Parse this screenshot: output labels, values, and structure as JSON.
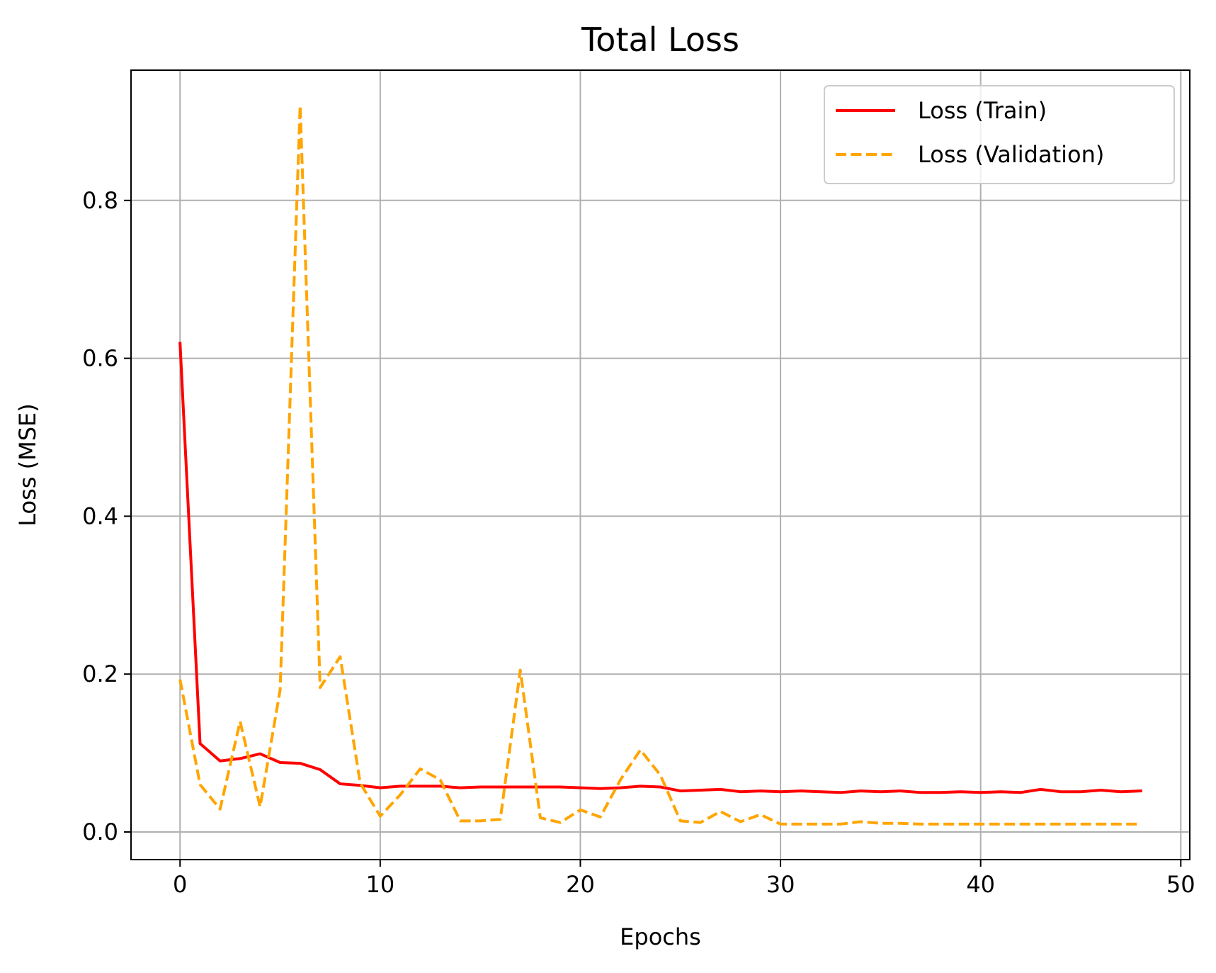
{
  "chart_data": {
    "type": "line",
    "title": "Total Loss",
    "xlabel": "Epochs",
    "ylabel": "Loss (MSE)",
    "xlim": [
      -2.45,
      50.45
    ],
    "ylim": [
      -0.035,
      0.965
    ],
    "xticks": [
      0,
      10,
      20,
      30,
      40,
      50
    ],
    "xtick_labels": [
      "0",
      "10",
      "20",
      "30",
      "40",
      "50"
    ],
    "yticks": [
      0.0,
      0.2,
      0.4,
      0.6,
      0.8
    ],
    "ytick_labels": [
      "0.0",
      "0.2",
      "0.4",
      "0.6",
      "0.8"
    ],
    "grid": true,
    "legend_position": "top-right",
    "x": [
      0,
      1,
      2,
      3,
      4,
      5,
      6,
      7,
      8,
      9,
      10,
      11,
      12,
      13,
      14,
      15,
      16,
      17,
      18,
      19,
      20,
      21,
      22,
      23,
      24,
      25,
      26,
      27,
      28,
      29,
      30,
      31,
      32,
      33,
      34,
      35,
      36,
      37,
      38,
      39,
      40,
      41,
      42,
      43,
      44,
      45,
      46,
      47,
      48
    ],
    "series": [
      {
        "name": "Loss (Train)",
        "color": "#ff0000",
        "style": "solid",
        "values": [
          0.619,
          0.112,
          0.09,
          0.093,
          0.099,
          0.088,
          0.087,
          0.079,
          0.061,
          0.059,
          0.056,
          0.058,
          0.058,
          0.058,
          0.056,
          0.057,
          0.057,
          0.057,
          0.057,
          0.057,
          0.056,
          0.055,
          0.056,
          0.058,
          0.057,
          0.052,
          0.053,
          0.054,
          0.051,
          0.052,
          0.051,
          0.052,
          0.051,
          0.05,
          0.052,
          0.051,
          0.052,
          0.05,
          0.05,
          0.051,
          0.05,
          0.051,
          0.05,
          0.054,
          0.051,
          0.051,
          0.053,
          0.051,
          0.052
        ]
      },
      {
        "name": "Loss (Validation)",
        "color": "#ffa500",
        "style": "dashed",
        "values": [
          0.193,
          0.06,
          0.029,
          0.14,
          0.032,
          0.18,
          0.92,
          0.183,
          0.222,
          0.062,
          0.02,
          0.047,
          0.08,
          0.066,
          0.014,
          0.014,
          0.016,
          0.205,
          0.018,
          0.012,
          0.028,
          0.019,
          0.066,
          0.104,
          0.072,
          0.014,
          0.012,
          0.026,
          0.013,
          0.022,
          0.01,
          0.01,
          0.01,
          0.01,
          0.013,
          0.011,
          0.011,
          0.01,
          0.01,
          0.01,
          0.01,
          0.01,
          0.01,
          0.01,
          0.01,
          0.01,
          0.01,
          0.01,
          0.01
        ]
      }
    ]
  }
}
